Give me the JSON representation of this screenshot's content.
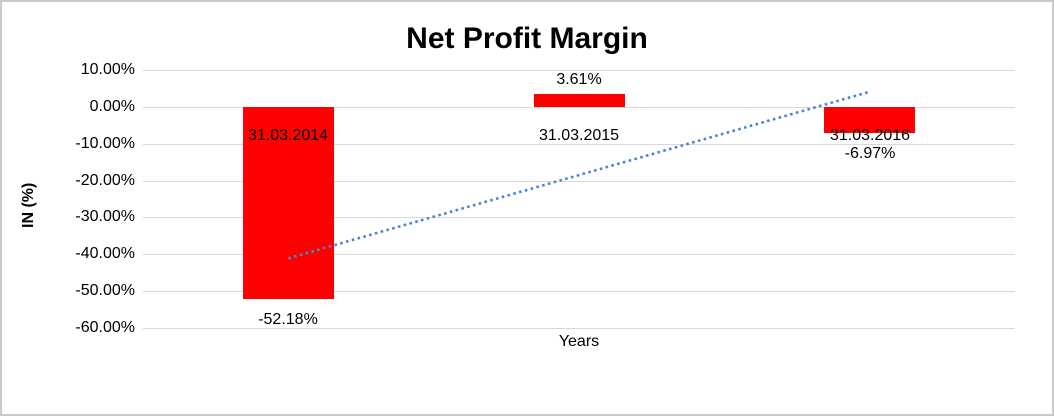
{
  "window": {
    "background_color": "#ffffff",
    "border_color": "#c9c9c9"
  },
  "chart_data": {
    "type": "bar",
    "title": "Net Profit Margin",
    "xlabel": "Years",
    "ylabel": "IN (%)",
    "categories": [
      "31.03.2014",
      "31.03.2015",
      "31.03.2016"
    ],
    "series": [
      {
        "name": "Net Profit Margin",
        "values": [
          -52.18,
          3.61,
          -6.97
        ]
      }
    ],
    "value_labels": [
      "-52.18%",
      "3.61%",
      "-6.97%"
    ],
    "y_ticks": [
      10,
      0,
      -10,
      -20,
      -30,
      -40,
      -50,
      -60
    ],
    "y_tick_labels": [
      "10.00%",
      "0.00%",
      "-10.00%",
      "-20.00%",
      "-30.00%",
      "-40.00%",
      "-50.00%",
      "-60.00%"
    ],
    "ylim": [
      -60,
      10
    ],
    "grid": true,
    "legend": "none",
    "bar_color": "#ff0000",
    "gridline_color": "#d9d9d9",
    "trendline": {
      "type": "linear",
      "style": "dotted",
      "color": "#4a86d0",
      "start_category_index": 0,
      "end_category_index": 2,
      "start_value": -41.1,
      "end_value": 4.1
    }
  }
}
